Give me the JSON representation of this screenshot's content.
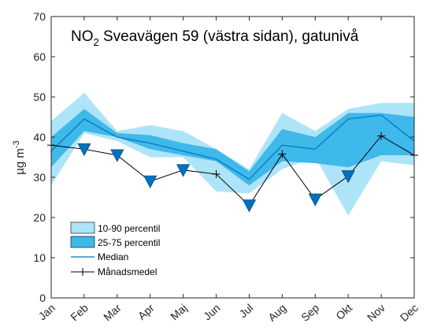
{
  "chart_data": {
    "type": "area",
    "title": {
      "prefix": "NO",
      "subscript": "2",
      "suffix": " Sveavägen 59 (västra sidan), gatunivå"
    },
    "ylabel": {
      "main": "µg m",
      "superscript": "-3"
    },
    "xlabel": "",
    "categories": [
      "Jan",
      "Feb",
      "Mar",
      "Apr",
      "Maj",
      "Jun",
      "Jul",
      "Aug",
      "Sep",
      "Okt",
      "Nov",
      "Dec"
    ],
    "ylim": [
      0,
      70
    ],
    "yticks": [
      0,
      10,
      20,
      30,
      40,
      50,
      60,
      70
    ],
    "grid": false,
    "legend_position": "bottom-left",
    "series": [
      {
        "name": "10-90 percentil",
        "kind": "band",
        "color": "#aee4f8",
        "low": [
          28,
          41,
          39,
          35,
          35,
          26.5,
          26,
          32,
          35,
          20.5,
          34,
          33
        ],
        "high": [
          44,
          51,
          41.5,
          43,
          41.5,
          37,
          32,
          46,
          41.5,
          47,
          48.5,
          48.5
        ]
      },
      {
        "name": "25-75 percentil",
        "kind": "band",
        "color": "#3fb8ea",
        "low": [
          32.5,
          41.5,
          40,
          37,
          35.5,
          34,
          28,
          34,
          33.5,
          32.5,
          35.5,
          35.5
        ],
        "high": [
          40,
          47,
          41,
          40.5,
          38.5,
          37,
          31.5,
          42,
          40,
          46,
          46,
          45
        ]
      },
      {
        "name": "Median",
        "kind": "line",
        "color": "#0072bd",
        "values": [
          36.5,
          44.5,
          40,
          38.5,
          36.5,
          34.5,
          29.5,
          38,
          37,
          44.5,
          45.5,
          39
        ]
      },
      {
        "name": "Månadsmedel",
        "kind": "line-markers",
        "color": "#000000",
        "values": [
          38,
          37,
          35.5,
          29,
          31.8,
          30.8,
          23,
          35.8,
          24.5,
          30.3,
          40.3,
          35.5
        ],
        "triangle_markers": [
          false,
          true,
          true,
          true,
          true,
          false,
          true,
          false,
          true,
          true,
          false,
          false
        ],
        "marker_color": "#0072bd"
      }
    ]
  }
}
